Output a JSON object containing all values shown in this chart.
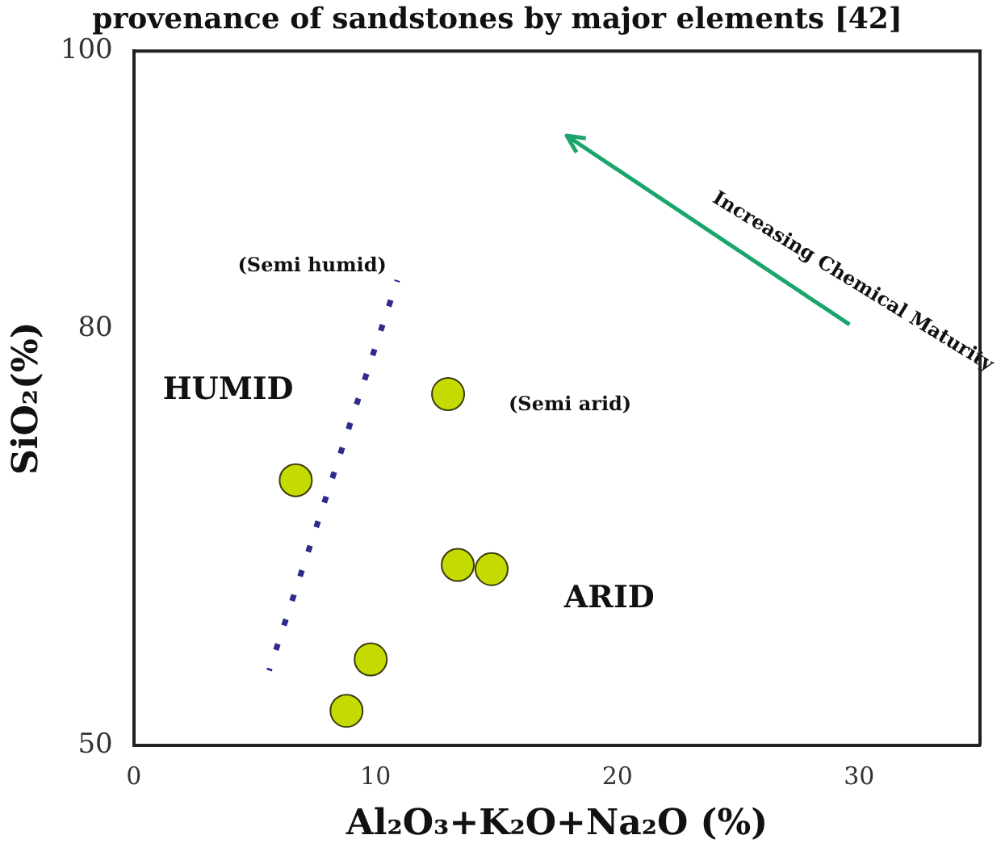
{
  "chart_data": {
    "type": "scatter",
    "title": "provenance of sandstones by major elements [42]",
    "xlabel": "Al₂O₃+K₂O+Na₂O (%)",
    "ylabel": "SiO₂(%)",
    "xlim": [
      0,
      35
    ],
    "xticks": [
      0,
      10,
      20,
      30
    ],
    "ylim": [
      50,
      100
    ],
    "yticks": [
      50,
      80,
      100
    ],
    "grid": false,
    "legend": false,
    "marker": "circle",
    "series": [
      {
        "color": "#c5da00",
        "x": [
          6.7,
          13.0,
          13.4,
          14.8,
          9.8,
          8.8
        ],
        "values": [
          69.1,
          75.3,
          63.0,
          62.7,
          56.2,
          52.5
        ]
      },
      {
        "type": "line",
        "color": "#2e2a8a",
        "line_style": "dotted",
        "marker": "none",
        "x": [
          5.6,
          10.9
        ],
        "values": [
          55.4,
          83.5
        ]
      }
    ],
    "annotations": [
      "(Semi humid)",
      "HUMID",
      "(Semi arid)",
      "ARID",
      "Increasing Chemical Maturity"
    ]
  }
}
